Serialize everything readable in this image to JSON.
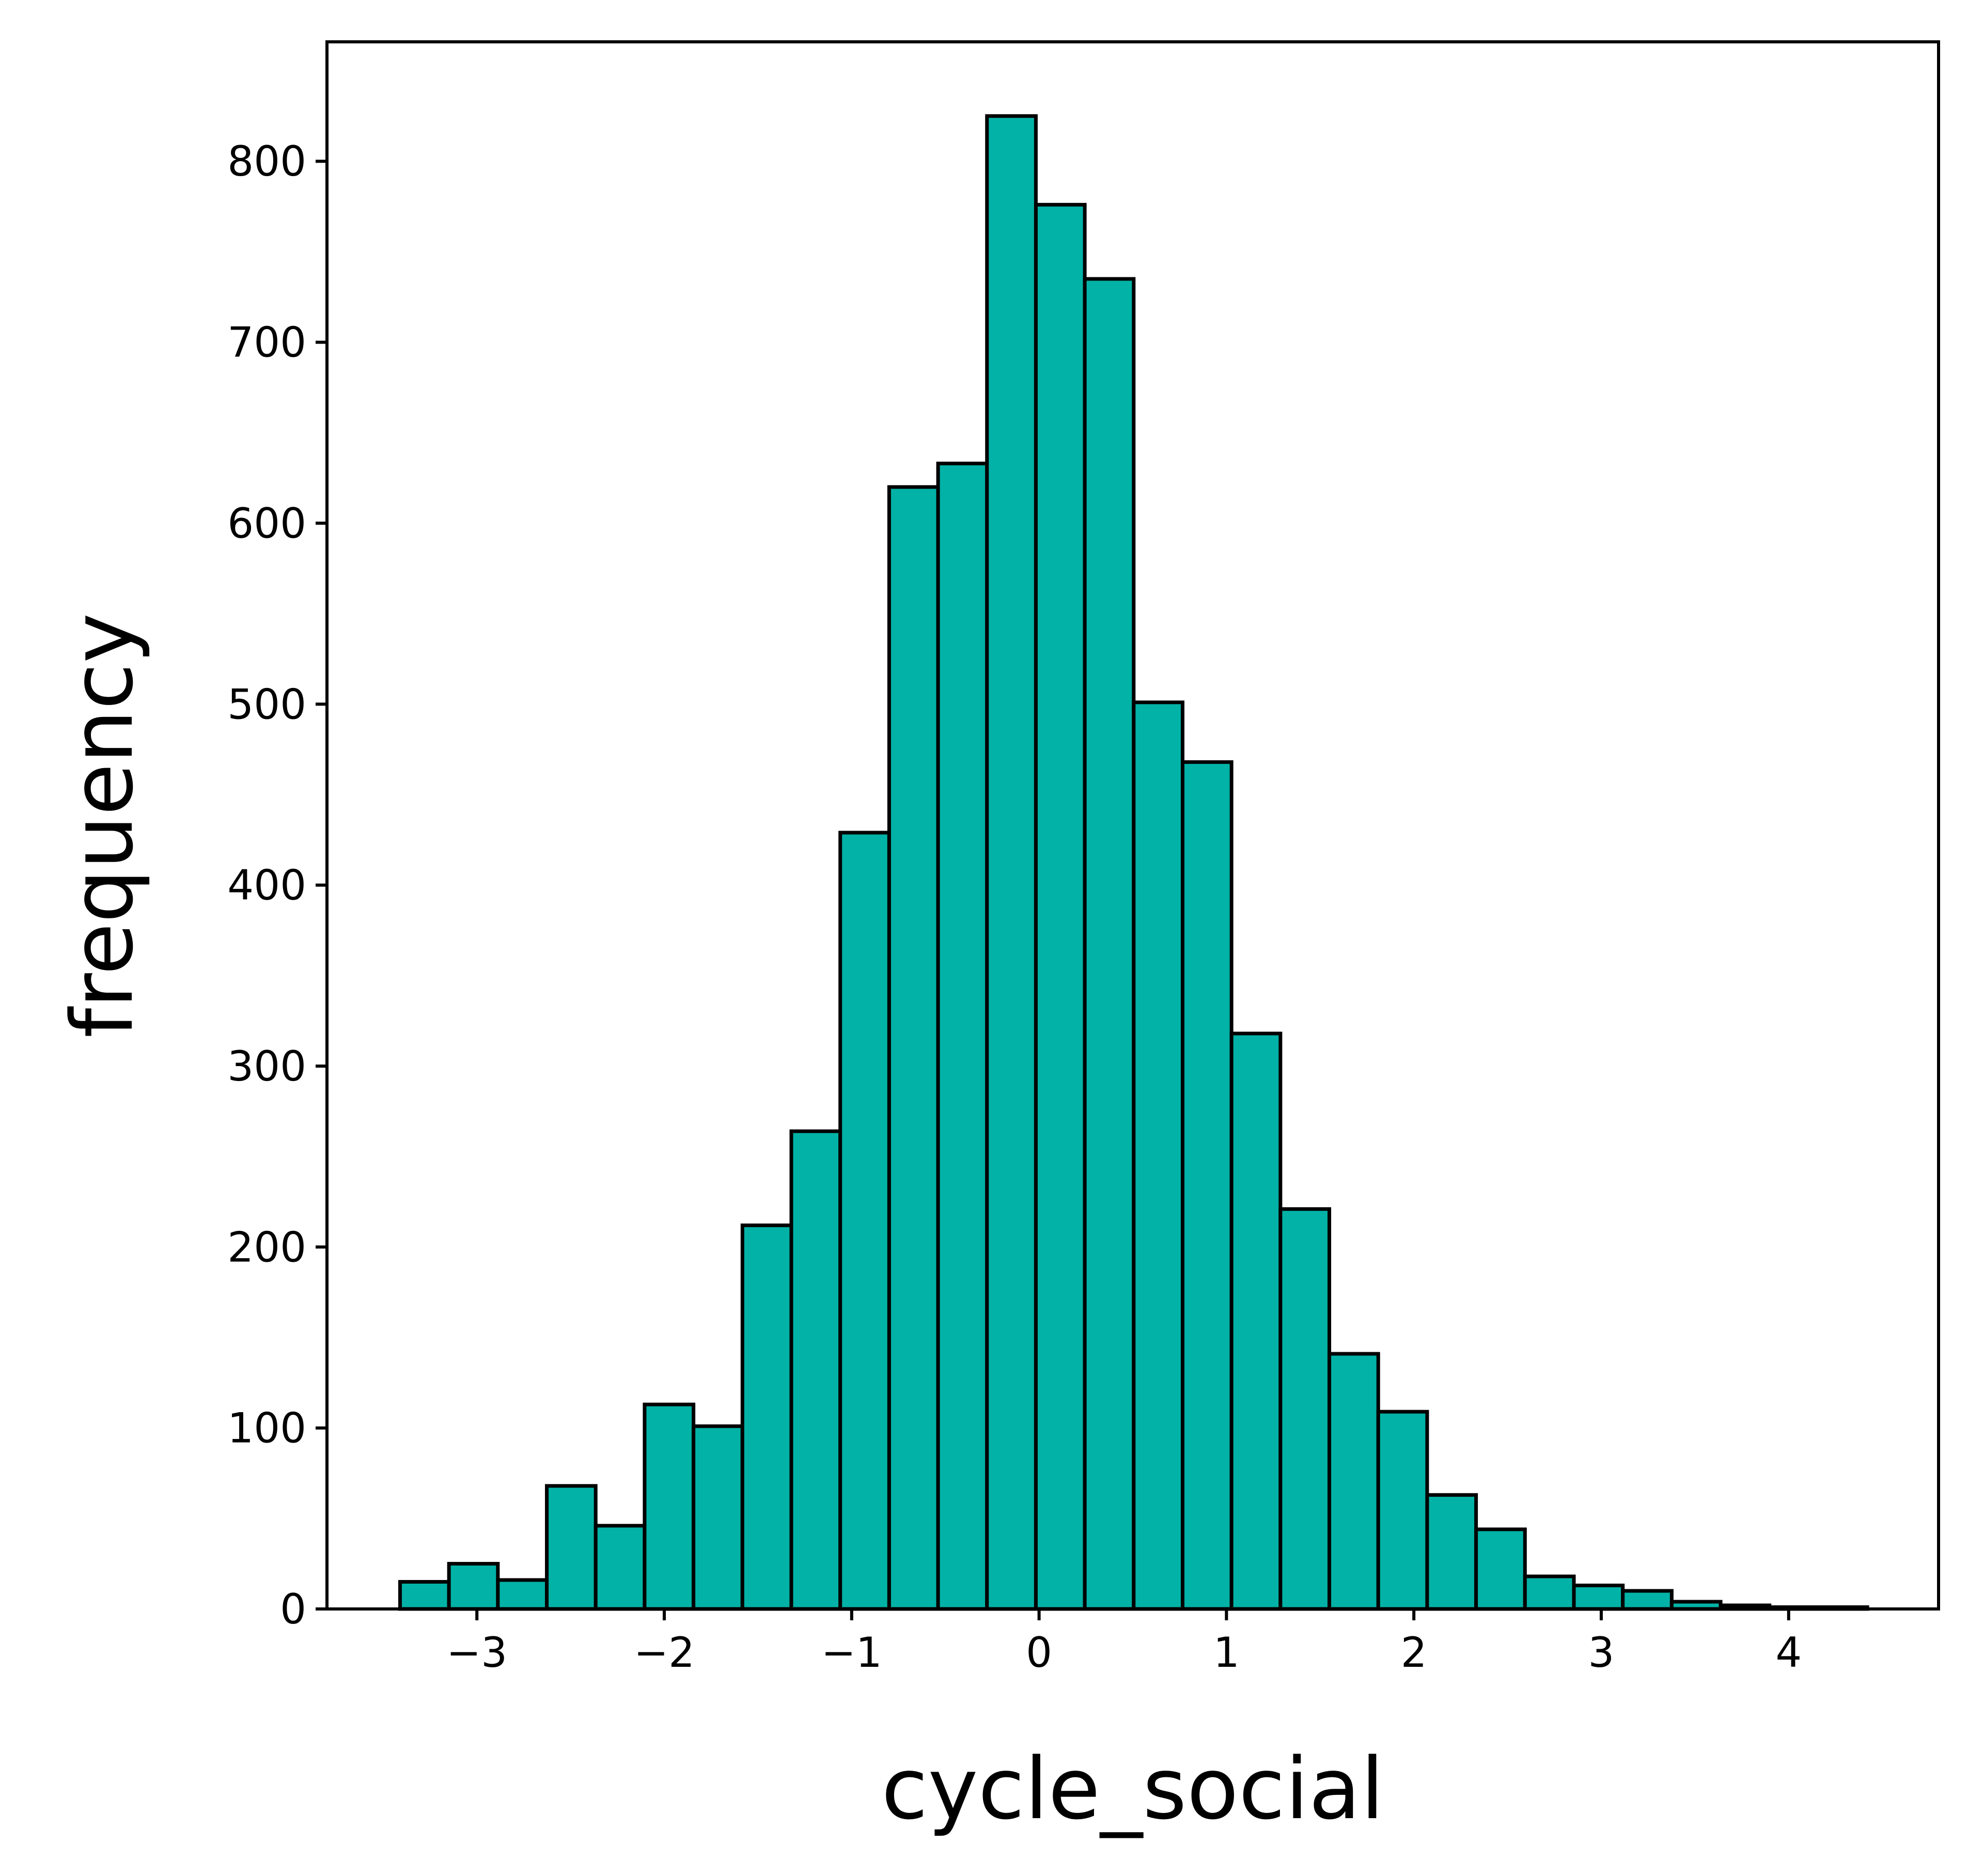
{
  "chart_data": {
    "type": "bar",
    "subtype": "histogram",
    "title": "",
    "xlabel": "cycle_social",
    "ylabel": "frequency",
    "bar_color": "#02B2A6",
    "edge_color": "#000000",
    "grid": false,
    "legend": "none",
    "xlim": [
      -3.8,
      4.8
    ],
    "ylim": [
      0,
      866
    ],
    "xticks": [
      -3,
      -2,
      -1,
      0,
      1,
      2,
      3,
      4
    ],
    "xtick_labels": [
      "−3",
      "−2",
      "−1",
      "0",
      "1",
      "2",
      "3",
      "4"
    ],
    "yticks": [
      0,
      100,
      200,
      300,
      400,
      500,
      600,
      700,
      800
    ],
    "ytick_labels": [
      "0",
      "100",
      "200",
      "300",
      "400",
      "500",
      "600",
      "700",
      "800"
    ],
    "bin_edges": [
      -3.41,
      -3.149,
      -2.888,
      -2.627,
      -2.366,
      -2.105,
      -1.844,
      -1.583,
      -1.322,
      -1.061,
      -0.8,
      -0.539,
      -0.278,
      -0.017,
      0.244,
      0.505,
      0.766,
      1.027,
      1.288,
      1.549,
      1.81,
      2.071,
      2.332,
      2.593,
      2.854,
      3.115,
      3.376,
      3.637,
      3.898,
      4.159,
      4.42
    ],
    "values": [
      15,
      25,
      16,
      68,
      46,
      113,
      101,
      212,
      264,
      429,
      620,
      633,
      825,
      776,
      735,
      501,
      468,
      318,
      221,
      141,
      109,
      63,
      44,
      18,
      13,
      10,
      4,
      2,
      1,
      1
    ]
  }
}
